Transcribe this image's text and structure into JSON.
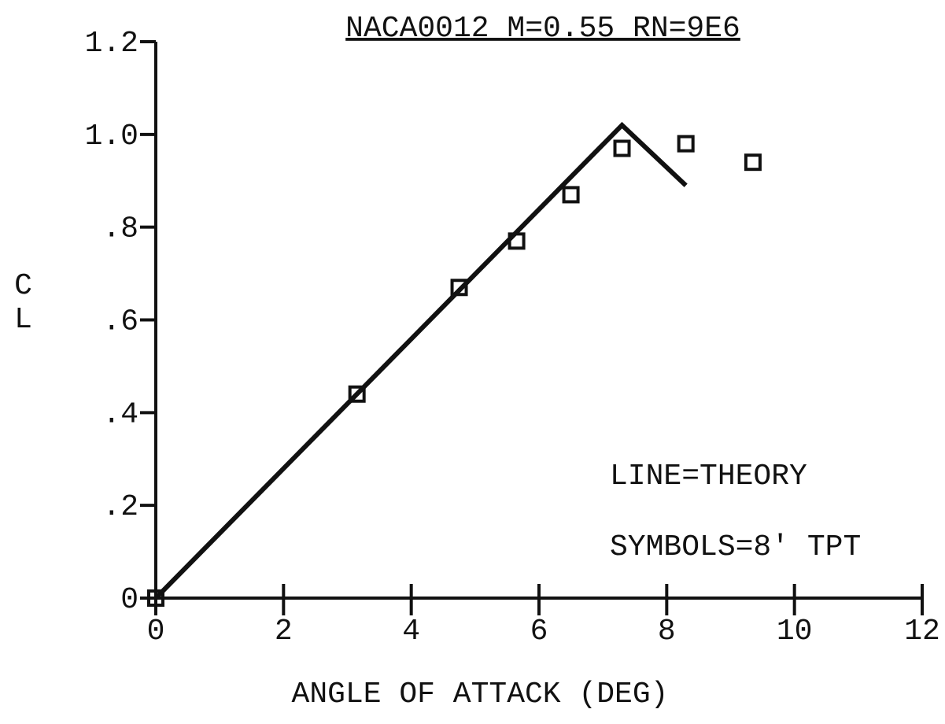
{
  "chart_data": {
    "type": "line",
    "title": "NACA0012 M=0.55 RN=9E6",
    "xlabel": "ANGLE OF ATTACK (DEG)",
    "ylabel": "CL",
    "annotations": [
      "LINE=THEORY",
      "SYMBOLS=8' TPT"
    ],
    "xlim": [
      0,
      12
    ],
    "ylim": [
      0,
      1.2
    ],
    "xticks": [
      0,
      2,
      4,
      6,
      8,
      10,
      12
    ],
    "yticks": [
      0,
      {
        "value": 0.2,
        "label": ".2"
      },
      {
        "value": 0.4,
        "label": ".4"
      },
      {
        "value": 0.6,
        "label": ".6"
      },
      {
        "value": 0.8,
        "label": ".8"
      },
      {
        "value": 1.0,
        "label": "1.0"
      },
      1.2
    ],
    "series": [
      {
        "style": "line",
        "color": "#111111",
        "x": [
          0,
          7.3,
          8.3
        ],
        "values": [
          0,
          1.02,
          0.89
        ]
      },
      {
        "style": "markers",
        "color": "#111111",
        "x": [
          0,
          3.15,
          4.75,
          5.65,
          6.5,
          7.3,
          8.3,
          9.35
        ],
        "values": [
          0,
          0.44,
          0.67,
          0.77,
          0.87,
          0.97,
          0.98,
          0.94
        ]
      }
    ]
  }
}
